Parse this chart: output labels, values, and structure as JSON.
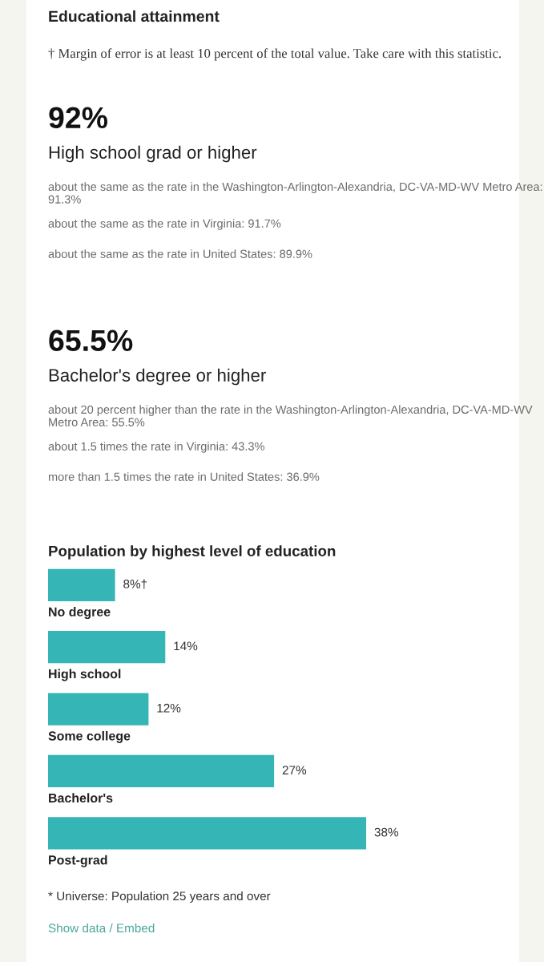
{
  "chart_data": [
    {
      "type": "other",
      "title": "Educational attainment",
      "subtitle": "† Margin of error is at least 10 percent of the total value. Take care with this statistic.",
      "categories": [
        "High school grad or higher",
        "Bachelor's degree or higher"
      ],
      "values": [
        92,
        65.5
      ],
      "value_labels": [
        "92%",
        "65.5%"
      ],
      "annotations": [
        "about the same as the rate in the Washington-Arlington-Alexandria, DC-VA-MD-WV Metro Area: 91.3%",
        "about the same as the rate in Virginia: 91.7%",
        "about the same as the rate in United States: 89.9%",
        "about 20 percent higher than the rate in the Washington-Arlington-Alexandria, DC-VA-MD-WV Metro Area: 55.5%",
        "about 1.5 times the rate in Virginia: 43.3%",
        "more than 1.5 times the rate in United States: 36.9%"
      ]
    },
    {
      "type": "bar",
      "orientation": "horizontal",
      "title": "Population by highest level of education",
      "categories": [
        "No degree",
        "High school",
        "Some college",
        "Bachelor's",
        "Post-grad"
      ],
      "values": [
        8,
        14,
        12,
        27,
        38
      ],
      "value_labels": [
        "8%†",
        "14%",
        "12%",
        "27%",
        "38%"
      ],
      "color": "#35b5b5",
      "annotations": [
        "* Universe: Population 25 years and over",
        "Show data / Embed"
      ]
    }
  ]
}
